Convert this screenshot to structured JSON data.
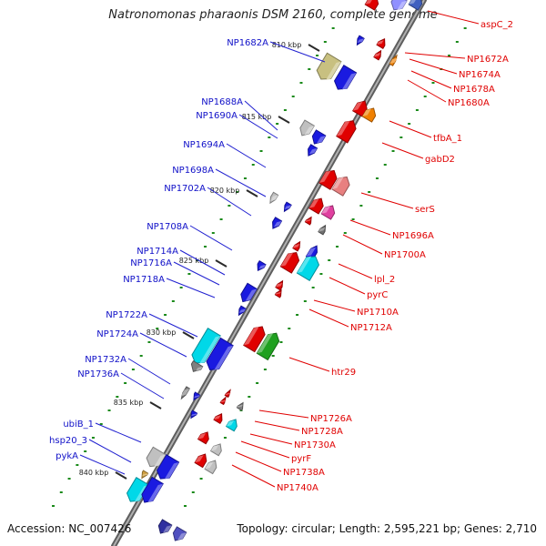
{
  "title": "Natronomonas pharaonis DSM 2160, complete genome",
  "footer": {
    "accession": "Accession: NC_007426",
    "summary": "Topology: circular; Length: 2,595,221 bp; Genes: 2,710"
  },
  "colors": {
    "backbone": "#7a7a7a",
    "left_label": "#1010c8",
    "right_label": "#e00000",
    "ticks": "#1a8a1a"
  },
  "scale_labels": [
    "810 kbp",
    "815 kbp",
    "820 kbp",
    "825 kbp",
    "830 kbp",
    "835 kbp",
    "840 kbp"
  ],
  "left_genes": [
    "NP1682A",
    "NP1688A",
    "NP1690A",
    "NP1694A",
    "NP1698A",
    "NP1702A",
    "NP1708A",
    "NP1714A",
    "NP1716A",
    "NP1718A",
    "NP1722A",
    "NP1724A",
    "NP1732A",
    "NP1736A",
    "ubiB_1",
    "hsp20_3",
    "pykA"
  ],
  "right_genes": [
    "aspC_2",
    "NP1672A",
    "NP1674A",
    "NP1678A",
    "NP1680A",
    "tfbA_1",
    "gabD2",
    "serS",
    "NP1696A",
    "NP1700A",
    "lpl_2",
    "pyrC",
    "NP1710A",
    "NP1712A",
    "htr29",
    "NP1726A",
    "NP1728A",
    "NP1730A",
    "pyrF",
    "NP1738A",
    "NP1740A"
  ]
}
